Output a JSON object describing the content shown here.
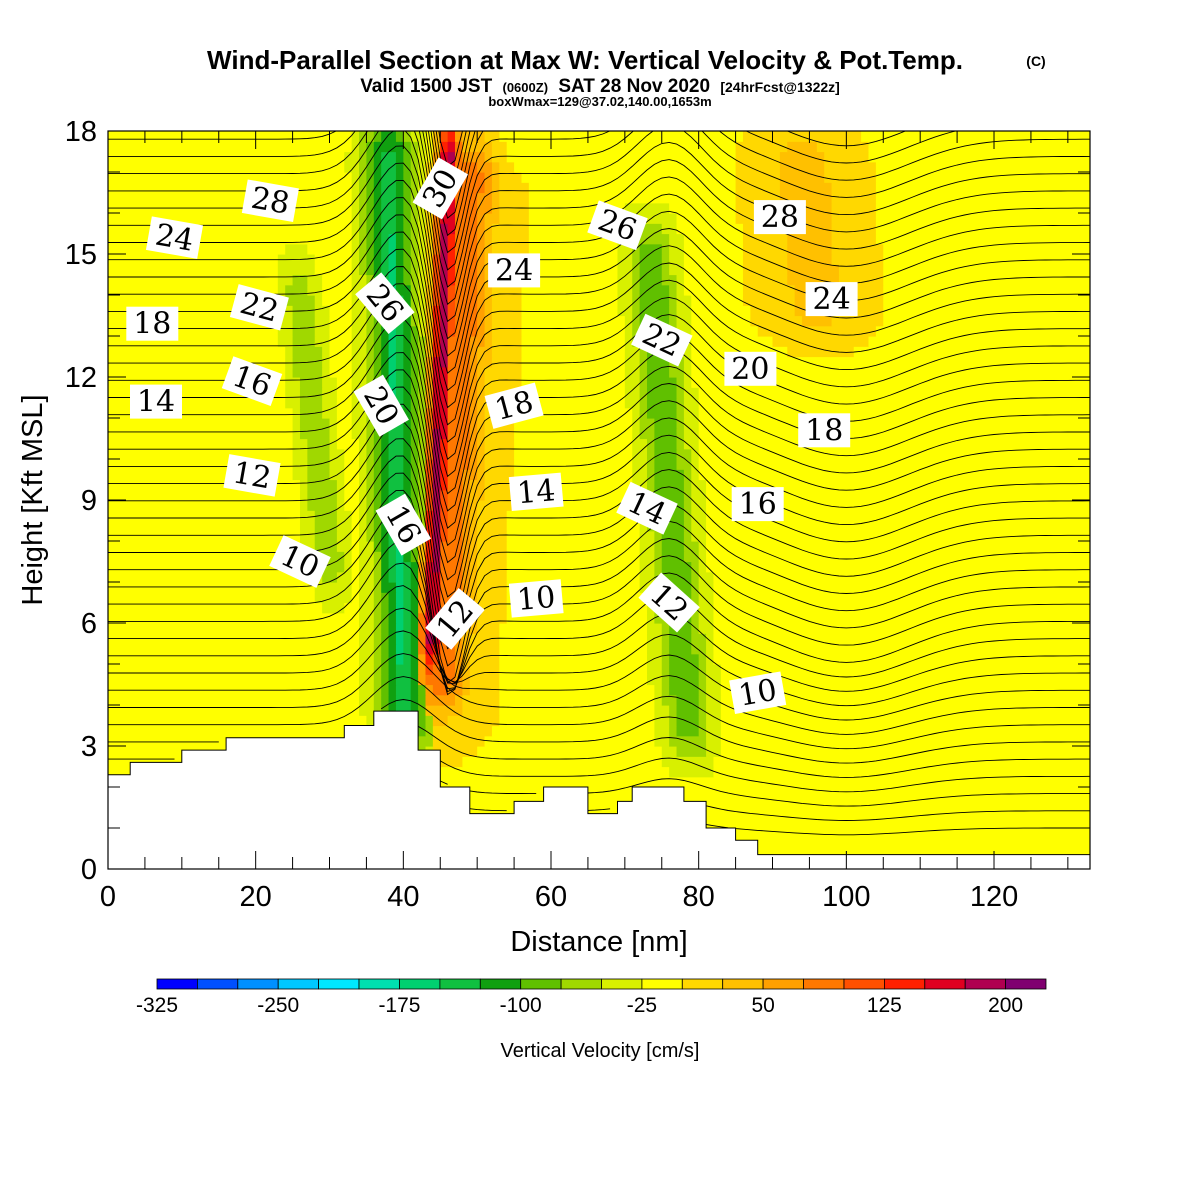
{
  "header": {
    "title": "Wind-Parallel Section at Max W: Vertical Velocity & Pot.Temp.",
    "copyright": "(C)",
    "subtitle_main": "Valid 1500 JST",
    "subtitle_utc": "(0600Z)",
    "subtitle_date": "SAT 28 Nov 2020",
    "subtitle_fcst": "[24hrFcst@1322z]",
    "boxinfo": "boxWmax=129@37.02,140.00,1653m"
  },
  "chart_data": {
    "type": "heatmap",
    "title": "Wind-Parallel Section at Max W: Vertical Velocity & Pot.Temp.",
    "xlabel": "Distance [nm]",
    "ylabel": "Height [Kft MSL]",
    "xlim": [
      0,
      133
    ],
    "ylim": [
      0,
      18
    ],
    "x_ticks": [
      0,
      20,
      40,
      60,
      80,
      100,
      120
    ],
    "y_ticks": [
      0,
      3,
      6,
      9,
      12,
      15,
      18
    ],
    "background_w_cms": -15,
    "w_features": [
      {
        "x": 45,
        "y_bottom": 5,
        "y_top": 18,
        "half_width": 1.6,
        "lean": 0.2,
        "w": 200
      },
      {
        "x": 47,
        "y_bottom": 4,
        "y_top": 17.5,
        "half_width": 4.0,
        "lean": 0.3,
        "w": 110
      },
      {
        "x": 48,
        "y_bottom": 3,
        "y_top": 17,
        "half_width": 7.0,
        "lean": 0.35,
        "w": 40
      },
      {
        "x": 39,
        "y_bottom": 3,
        "y_top": 18,
        "half_width": 3.5,
        "lean": -0.15,
        "w": -120
      },
      {
        "x": 39,
        "y_bottom": 4,
        "y_top": 16.5,
        "half_width": 1.6,
        "lean": -0.15,
        "w": -140
      },
      {
        "x": 76,
        "y_bottom": 3,
        "y_top": 15.5,
        "half_width": 3.2,
        "lean": -0.45,
        "w": -80
      },
      {
        "x": 28,
        "y_bottom": 7,
        "y_top": 14.5,
        "half_width": 2.5,
        "lean": -0.6,
        "w": -55
      },
      {
        "x": 95,
        "y_bottom": 13,
        "y_top": 18,
        "half_width": 9.0,
        "lean": -0.5,
        "w": 45
      },
      {
        "x": 15,
        "y_bottom": 0.5,
        "y_top": 7.5,
        "half_width": 12.0,
        "lean": 0.2,
        "w": 15
      },
      {
        "x": 118,
        "y_bottom": 8,
        "y_top": 18,
        "half_width": 5.0,
        "lean": 0.0,
        "w": 15
      },
      {
        "x": 115,
        "y_bottom": 0.3,
        "y_top": 4,
        "half_width": 4.0,
        "lean": 0.0,
        "w": 15
      }
    ],
    "terrain_kft": [
      {
        "x": 0,
        "y": 2.3
      },
      {
        "x": 3,
        "y": 2.6
      },
      {
        "x": 10,
        "y": 2.9
      },
      {
        "x": 16,
        "y": 3.2
      },
      {
        "x": 32,
        "y": 3.5
      },
      {
        "x": 36,
        "y": 3.85
      },
      {
        "x": 42,
        "y": 2.9
      },
      {
        "x": 45,
        "y": 2.0
      },
      {
        "x": 49,
        "y": 1.35
      },
      {
        "x": 55,
        "y": 1.65
      },
      {
        "x": 59,
        "y": 2.0
      },
      {
        "x": 65,
        "y": 1.35
      },
      {
        "x": 69,
        "y": 1.65
      },
      {
        "x": 71,
        "y": 2.0
      },
      {
        "x": 78,
        "y": 1.65
      },
      {
        "x": 81,
        "y": 1.0
      },
      {
        "x": 85,
        "y": 0.7
      },
      {
        "x": 88,
        "y": 0.35
      },
      {
        "x": 133,
        "y": 0.35
      }
    ],
    "theta_levels": [
      10,
      12,
      14,
      16,
      18,
      20,
      22,
      24,
      26,
      28,
      30
    ],
    "theta_labels": [
      {
        "value": 10,
        "x": 26,
        "y": 7.5,
        "angle": 25
      },
      {
        "value": 10,
        "x": 58,
        "y": 6.6,
        "angle": -5
      },
      {
        "value": 10,
        "x": 88,
        "y": 4.3,
        "angle": -10
      },
      {
        "value": 12,
        "x": 19.5,
        "y": 9.6,
        "angle": 10
      },
      {
        "value": 12,
        "x": 47,
        "y": 6.1,
        "angle": -50
      },
      {
        "value": 12,
        "x": 76,
        "y": 6.5,
        "angle": 42
      },
      {
        "value": 14,
        "x": 6.5,
        "y": 11.4,
        "angle": 0
      },
      {
        "value": 14,
        "x": 58,
        "y": 9.2,
        "angle": -5
      },
      {
        "value": 14,
        "x": 73,
        "y": 8.8,
        "angle": 25
      },
      {
        "value": 16,
        "x": 19.5,
        "y": 11.9,
        "angle": 20
      },
      {
        "value": 16,
        "x": 40,
        "y": 8.4,
        "angle": 60
      },
      {
        "value": 16,
        "x": 88,
        "y": 8.9,
        "angle": 0
      },
      {
        "value": 18,
        "x": 6,
        "y": 13.3,
        "angle": 0
      },
      {
        "value": 18,
        "x": 55,
        "y": 11.3,
        "angle": -15
      },
      {
        "value": 18,
        "x": 97,
        "y": 10.7,
        "angle": 0
      },
      {
        "value": 20,
        "x": 37,
        "y": 11.3,
        "angle": 60
      },
      {
        "value": 20,
        "x": 87,
        "y": 12.2,
        "angle": 0
      },
      {
        "value": 22,
        "x": 20.5,
        "y": 13.7,
        "angle": 15
      },
      {
        "value": 22,
        "x": 75,
        "y": 12.9,
        "angle": 25
      },
      {
        "value": 24,
        "x": 9,
        "y": 15.4,
        "angle": 10
      },
      {
        "value": 24,
        "x": 55,
        "y": 14.6,
        "angle": 0
      },
      {
        "value": 24,
        "x": 98,
        "y": 13.9,
        "angle": 0
      },
      {
        "value": 26,
        "x": 37.5,
        "y": 13.8,
        "angle": 50
      },
      {
        "value": 26,
        "x": 69,
        "y": 15.7,
        "angle": 20
      },
      {
        "value": 28,
        "x": 22,
        "y": 16.3,
        "angle": 10
      },
      {
        "value": 28,
        "x": 91,
        "y": 15.9,
        "angle": 0
      },
      {
        "value": 30,
        "x": 45,
        "y": 16.6,
        "angle": -60
      }
    ],
    "colorbar": {
      "label": "Vertical Velocity [cm/s]",
      "tick_labels": [
        "-325",
        "-250",
        "-175",
        "-100",
        "-25",
        "50",
        "125",
        "200"
      ],
      "tick_values": [
        -325,
        -250,
        -175,
        -100,
        -25,
        50,
        125,
        200
      ],
      "bounds": [
        -325,
        -300,
        -275,
        -250,
        -225,
        -200,
        -175,
        -150,
        -125,
        -100,
        -75,
        -50,
        -25,
        0,
        25,
        50,
        75,
        100,
        125,
        150,
        175,
        200,
        225
      ],
      "colors": [
        "#0000ff",
        "#0050ff",
        "#0090ff",
        "#00c8ff",
        "#00e8ff",
        "#00e0b0",
        "#00d070",
        "#10c040",
        "#10a010",
        "#60c000",
        "#a0d800",
        "#d8f000",
        "#ffff00",
        "#ffd800",
        "#ffc000",
        "#ffa000",
        "#ff7800",
        "#ff5000",
        "#ff2000",
        "#e00020",
        "#b00050",
        "#800070"
      ]
    }
  }
}
